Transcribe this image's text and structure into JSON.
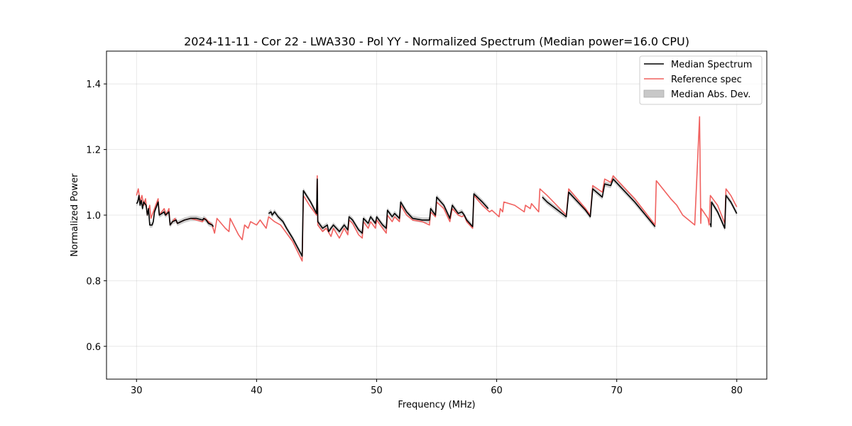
{
  "chart_data": {
    "type": "line",
    "title": "2024-11-11 - Cor 22 - LWA330 - Pol YY - Normalized Spectrum (Median power=16.0 CPU)",
    "xlabel": "Frequency (MHz)",
    "ylabel": "Normalized Power",
    "xlim": [
      27.5,
      82.5
    ],
    "ylim": [
      0.5,
      1.5
    ],
    "xticks": [
      30,
      40,
      50,
      60,
      70,
      80
    ],
    "yticks": [
      0.6,
      0.8,
      1.0,
      1.2,
      1.4
    ],
    "grid": true,
    "legend_location": "upper-right",
    "legend": [
      "Median Spectrum",
      "Reference spec",
      "Median Abs. Dev."
    ],
    "colors": {
      "median": "#000000",
      "reference": "#f0615f",
      "mad": "#c8c8c8"
    },
    "series": [
      {
        "name": "Reference spec",
        "segments": [
          [
            [
              30.0,
              1.06
            ],
            [
              30.15,
              1.08
            ],
            [
              30.3,
              1.04
            ],
            [
              30.45,
              1.06
            ],
            [
              30.6,
              1.03
            ],
            [
              30.75,
              1.05
            ],
            [
              30.9,
              1.0
            ],
            [
              31.1,
              1.03
            ],
            [
              31.2,
              0.99
            ],
            [
              31.4,
              1.01
            ],
            [
              31.8,
              1.05
            ],
            [
              31.9,
              1.0
            ],
            [
              32.3,
              1.02
            ],
            [
              32.5,
              1.0
            ],
            [
              32.7,
              1.02
            ],
            [
              32.8,
              0.97
            ],
            [
              33.2,
              0.99
            ],
            [
              33.4,
              0.975
            ],
            [
              34.0,
              0.985
            ],
            [
              34.5,
              0.99
            ],
            [
              35.0,
              0.985
            ],
            [
              35.5,
              0.98
            ],
            [
              35.7,
              0.99
            ],
            [
              36.3,
              0.97
            ],
            [
              36.5,
              0.945
            ],
            [
              36.7,
              0.99
            ],
            [
              37.4,
              0.96
            ],
            [
              37.7,
              0.95
            ],
            [
              37.8,
              0.99
            ],
            [
              38.5,
              0.94
            ],
            [
              38.8,
              0.925
            ],
            [
              39.0,
              0.97
            ],
            [
              39.3,
              0.96
            ],
            [
              39.5,
              0.98
            ],
            [
              40.0,
              0.97
            ],
            [
              40.3,
              0.985
            ],
            [
              40.5,
              0.975
            ],
            [
              40.8,
              0.96
            ],
            [
              41.0,
              0.995
            ],
            [
              41.5,
              0.98
            ],
            [
              42.0,
              0.97
            ],
            [
              43.0,
              0.92
            ],
            [
              43.8,
              0.86
            ],
            [
              43.9,
              1.06
            ],
            [
              44.4,
              1.03
            ],
            [
              45.0,
              1.0
            ],
            [
              45.05,
              1.12
            ],
            [
              45.1,
              0.97
            ],
            [
              45.5,
              0.95
            ],
            [
              45.8,
              0.96
            ],
            [
              46.2,
              0.935
            ],
            [
              46.4,
              0.96
            ],
            [
              46.9,
              0.93
            ],
            [
              47.3,
              0.96
            ],
            [
              47.6,
              0.94
            ],
            [
              47.7,
              0.985
            ],
            [
              48.0,
              0.975
            ],
            [
              48.5,
              0.94
            ],
            [
              48.8,
              0.93
            ],
            [
              48.9,
              0.98
            ],
            [
              49.3,
              0.96
            ],
            [
              49.5,
              0.98
            ],
            [
              49.9,
              0.96
            ],
            [
              50.0,
              0.985
            ],
            [
              50.5,
              0.96
            ],
            [
              50.8,
              0.945
            ],
            [
              50.9,
              1.0
            ],
            [
              51.3,
              0.98
            ],
            [
              51.5,
              0.995
            ],
            [
              51.9,
              0.98
            ],
            [
              52.0,
              1.03
            ],
            [
              52.5,
              1.0
            ],
            [
              53.0,
              0.985
            ],
            [
              53.8,
              0.98
            ],
            [
              54.4,
              0.97
            ],
            [
              54.5,
              1.01
            ],
            [
              54.9,
              0.995
            ],
            [
              55.0,
              1.04
            ],
            [
              55.6,
              1.02
            ],
            [
              56.1,
              0.98
            ],
            [
              56.3,
              1.02
            ],
            [
              56.8,
              1.0
            ],
            [
              57.1,
              0.995
            ],
            [
              57.3,
              1.0
            ],
            [
              57.5,
              0.98
            ],
            [
              58.0,
              0.96
            ],
            [
              58.1,
              1.06
            ],
            [
              58.8,
              1.03
            ],
            [
              59.4,
              1.01
            ],
            [
              59.6,
              1.015
            ],
            [
              60.2,
              0.995
            ],
            [
              60.3,
              1.02
            ],
            [
              60.5,
              1.01
            ],
            [
              60.6,
              1.04
            ],
            [
              61.5,
              1.03
            ],
            [
              62.3,
              1.01
            ],
            [
              62.4,
              1.03
            ],
            [
              62.8,
              1.02
            ],
            [
              62.9,
              1.035
            ],
            [
              63.5,
              1.01
            ],
            [
              63.6,
              1.08
            ],
            [
              64.2,
              1.06
            ],
            [
              65.8,
              1.0
            ],
            [
              66.0,
              1.08
            ],
            [
              67.4,
              1.02
            ],
            [
              67.8,
              1.0
            ],
            [
              68.0,
              1.09
            ],
            [
              68.8,
              1.07
            ],
            [
              69.0,
              1.11
            ],
            [
              69.5,
              1.1
            ],
            [
              69.7,
              1.12
            ],
            [
              71.5,
              1.05
            ],
            [
              73.2,
              0.97
            ],
            [
              73.3,
              1.105
            ],
            [
              74.5,
              1.05
            ],
            [
              75.0,
              1.03
            ],
            [
              75.5,
              1.0
            ],
            [
              76.5,
              0.97
            ],
            [
              76.9,
              1.3
            ],
            [
              77.0,
              0.975
            ],
            [
              77.05,
              1.02
            ],
            [
              77.6,
              0.99
            ],
            [
              77.7,
              0.97
            ],
            [
              77.8,
              1.06
            ],
            [
              78.4,
              1.03
            ],
            [
              79.0,
              0.975
            ],
            [
              79.1,
              1.08
            ],
            [
              79.5,
              1.06
            ],
            [
              80.0,
              1.025
            ]
          ]
        ]
      },
      {
        "name": "Median Spectrum",
        "segments": [
          [
            [
              30.0,
              1.035
            ],
            [
              30.1,
              1.04
            ],
            [
              30.2,
              1.06
            ],
            [
              30.3,
              1.03
            ],
            [
              30.4,
              1.045
            ],
            [
              30.5,
              1.02
            ],
            [
              30.6,
              1.04
            ],
            [
              30.8,
              1.03
            ],
            [
              30.9,
              1.0
            ],
            [
              31.0,
              1.02
            ],
            [
              31.1,
              0.97
            ],
            [
              31.3,
              0.97
            ],
            [
              31.4,
              0.98
            ],
            [
              31.5,
              1.01
            ],
            [
              31.8,
              1.04
            ],
            [
              31.9,
              1.0
            ],
            [
              32.3,
              1.01
            ],
            [
              32.4,
              1.0
            ],
            [
              32.7,
              1.01
            ],
            [
              32.8,
              0.97
            ],
            [
              33.0,
              0.98
            ],
            [
              33.3,
              0.985
            ],
            [
              33.4,
              0.975
            ],
            [
              34.0,
              0.985
            ],
            [
              34.5,
              0.99
            ],
            [
              35.0,
              0.99
            ],
            [
              35.5,
              0.985
            ],
            [
              35.6,
              0.99
            ],
            [
              35.8,
              0.985
            ],
            [
              36.0,
              0.975
            ],
            [
              36.3,
              0.97
            ],
            [
              36.4,
              0.965
            ]
          ],
          [
            [
              41.0,
              1.005
            ],
            [
              41.2,
              1.01
            ],
            [
              41.3,
              1.0
            ],
            [
              41.5,
              1.01
            ],
            [
              41.8,
              0.995
            ],
            [
              42.2,
              0.98
            ],
            [
              42.5,
              0.96
            ],
            [
              43.0,
              0.93
            ],
            [
              43.8,
              0.875
            ],
            [
              43.9,
              1.075
            ],
            [
              44.5,
              1.04
            ],
            [
              45.0,
              1.005
            ],
            [
              45.05,
              1.11
            ],
            [
              45.1,
              0.98
            ],
            [
              45.5,
              0.96
            ],
            [
              45.9,
              0.97
            ],
            [
              46.0,
              0.95
            ],
            [
              46.4,
              0.97
            ],
            [
              46.9,
              0.95
            ],
            [
              47.3,
              0.97
            ],
            [
              47.6,
              0.955
            ],
            [
              47.7,
              0.995
            ],
            [
              48.0,
              0.985
            ],
            [
              48.5,
              0.955
            ],
            [
              48.8,
              0.945
            ],
            [
              48.9,
              0.99
            ],
            [
              49.3,
              0.975
            ],
            [
              49.5,
              0.995
            ],
            [
              49.9,
              0.975
            ],
            [
              50.0,
              0.995
            ],
            [
              50.5,
              0.97
            ],
            [
              50.8,
              0.96
            ],
            [
              50.9,
              1.015
            ],
            [
              51.3,
              0.995
            ],
            [
              51.5,
              1.005
            ],
            [
              51.9,
              0.99
            ],
            [
              52.0,
              1.04
            ],
            [
              52.5,
              1.01
            ],
            [
              53.0,
              0.99
            ],
            [
              53.8,
              0.985
            ],
            [
              54.4,
              0.985
            ],
            [
              54.5,
              1.02
            ],
            [
              54.9,
              1.0
            ],
            [
              55.0,
              1.055
            ],
            [
              55.6,
              1.03
            ],
            [
              56.1,
              0.99
            ],
            [
              56.3,
              1.03
            ],
            [
              56.8,
              1.005
            ],
            [
              57.1,
              1.01
            ],
            [
              57.3,
              1.0
            ],
            [
              57.5,
              0.985
            ],
            [
              58.0,
              0.965
            ],
            [
              58.1,
              1.065
            ],
            [
              58.8,
              1.04
            ],
            [
              59.3,
              1.02
            ]
          ],
          [
            [
              63.8,
              1.055
            ],
            [
              64.2,
              1.04
            ],
            [
              65.8,
              0.995
            ],
            [
              66.0,
              1.07
            ],
            [
              67.4,
              1.015
            ],
            [
              67.8,
              0.995
            ],
            [
              68.0,
              1.08
            ],
            [
              68.8,
              1.055
            ],
            [
              69.0,
              1.095
            ],
            [
              69.5,
              1.09
            ],
            [
              69.7,
              1.11
            ],
            [
              71.5,
              1.04
            ],
            [
              73.2,
              0.965
            ]
          ],
          [
            [
              77.8,
              0.975
            ],
            [
              77.85,
              0.965
            ],
            [
              77.9,
              1.04
            ],
            [
              78.4,
              1.01
            ],
            [
              79.0,
              0.96
            ],
            [
              79.1,
              1.06
            ],
            [
              79.5,
              1.04
            ],
            [
              80.0,
              1.005
            ]
          ]
        ]
      }
    ]
  }
}
